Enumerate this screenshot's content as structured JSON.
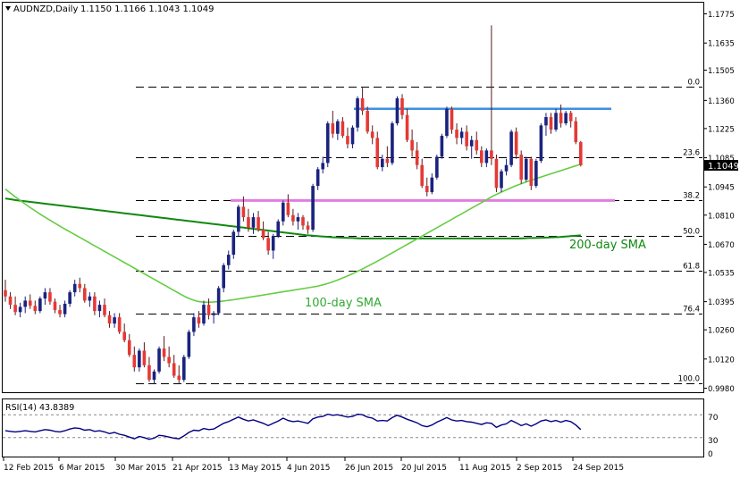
{
  "header": {
    "symbol_label": "AUDNZD,Daily",
    "ohlc_label": "1.1150 1.1166 1.1043 1.1049"
  },
  "rsi_panel": {
    "label": "RSI(14) 43.8389",
    "levels": [
      70,
      30
    ],
    "scale_ticks": [
      "70",
      "30",
      "0"
    ]
  },
  "annotations": {
    "sma200_label": "200-day SMA",
    "sma100_label": "100-day SMA",
    "current_price_tag": "1.1049"
  },
  "colors": {
    "bull_candle": "#1a237e",
    "bear_candle": "#e53935",
    "sma100": "#66cc44",
    "sma200": "#118811",
    "resistance_line": "#3d8fe0",
    "support_line": "#e07de0",
    "fib_lines": "#000000",
    "rsi_line": "#000080"
  },
  "chart_data": {
    "type": "candlestick",
    "y_axis_ticks": [
      1.1775,
      1.1635,
      1.1505,
      1.136,
      1.1225,
      1.1085,
      1.0945,
      1.081,
      1.067,
      1.0535,
      1.0395,
      1.026,
      1.012,
      0.998
    ],
    "ylim": [
      0.9965,
      1.182
    ],
    "x_axis_labels": [
      "12 Feb 2015",
      "6 Mar 2015",
      "30 Mar 2015",
      "21 Apr 2015",
      "13 May 2015",
      "4 Jun 2015",
      "26 Jun 2015",
      "20 Jul 2015",
      "11 Aug 2015",
      "2 Sep 2015",
      "24 Sep 2015"
    ],
    "fibonacci_levels": [
      {
        "label": "0.0",
        "price": 1.1425
      },
      {
        "label": "23.6",
        "price": 1.1087
      },
      {
        "label": "38.2",
        "price": 1.088
      },
      {
        "label": "50.0",
        "price": 1.0712
      },
      {
        "label": "61.8",
        "price": 1.0545
      },
      {
        "label": "76.4",
        "price": 1.0337
      },
      {
        "label": "100.0",
        "price": 1.0005
      }
    ],
    "resistance": {
      "price": 1.132
    },
    "support": {
      "price": 1.088
    },
    "current_price": 1.1049,
    "candles": [
      [
        1.045,
        1.05,
        1.0395,
        1.042
      ],
      [
        1.042,
        1.044,
        1.036,
        1.038
      ],
      [
        1.038,
        1.042,
        1.033,
        1.0345
      ],
      [
        1.0345,
        1.039,
        1.032,
        1.037
      ],
      [
        1.037,
        1.042,
        1.034,
        1.04
      ],
      [
        1.04,
        1.043,
        1.036,
        1.0375
      ],
      [
        1.0375,
        1.04,
        1.0335,
        1.035
      ],
      [
        1.035,
        1.042,
        1.034,
        1.041
      ],
      [
        1.041,
        1.046,
        1.038,
        1.044
      ],
      [
        1.044,
        1.046,
        1.038,
        1.0395
      ],
      [
        1.0395,
        1.041,
        1.034,
        1.0355
      ],
      [
        1.0355,
        1.038,
        1.032,
        1.0335
      ],
      [
        1.0335,
        1.04,
        1.032,
        1.0385
      ],
      [
        1.0385,
        1.045,
        1.037,
        1.044
      ],
      [
        1.044,
        1.05,
        1.042,
        1.048
      ],
      [
        1.048,
        1.051,
        1.044,
        1.046
      ],
      [
        1.046,
        1.048,
        1.039,
        1.04
      ],
      [
        1.04,
        1.044,
        1.037,
        1.042
      ],
      [
        1.042,
        1.044,
        1.033,
        1.035
      ],
      [
        1.035,
        1.04,
        1.032,
        1.038
      ],
      [
        1.038,
        1.041,
        1.032,
        1.033
      ],
      [
        1.033,
        1.035,
        1.027,
        1.029
      ],
      [
        1.029,
        1.034,
        1.027,
        1.032
      ],
      [
        1.032,
        1.034,
        1.024,
        1.025
      ],
      [
        1.025,
        1.029,
        1.02,
        1.021
      ],
      [
        1.021,
        1.024,
        1.013,
        1.014
      ],
      [
        1.014,
        1.018,
        1.006,
        1.008
      ],
      [
        1.008,
        1.017,
        1.006,
        1.016
      ],
      [
        1.016,
        1.02,
        1.008,
        1.009
      ],
      [
        1.009,
        1.013,
        1.001,
        1.002
      ],
      [
        1.002,
        1.007,
        1.0,
        1.006
      ],
      [
        1.006,
        1.018,
        1.005,
        1.017
      ],
      [
        1.017,
        1.023,
        1.011,
        1.013
      ],
      [
        1.013,
        1.018,
        1.008,
        1.01
      ],
      [
        1.01,
        1.014,
        1.003,
        1.004
      ],
      [
        1.004,
        1.009,
        1.0,
        1.002
      ],
      [
        1.002,
        1.014,
        1.001,
        1.013
      ],
      [
        1.013,
        1.026,
        1.012,
        1.025
      ],
      [
        1.025,
        1.034,
        1.023,
        1.032
      ],
      [
        1.032,
        1.035,
        1.027,
        1.029
      ],
      [
        1.029,
        1.04,
        1.028,
        1.038
      ],
      [
        1.038,
        1.041,
        1.031,
        1.033
      ],
      [
        1.033,
        1.035,
        1.029,
        1.034
      ],
      [
        1.034,
        1.047,
        1.033,
        1.046
      ],
      [
        1.046,
        1.058,
        1.044,
        1.057
      ],
      [
        1.057,
        1.064,
        1.055,
        1.062
      ],
      [
        1.062,
        1.074,
        1.06,
        1.073
      ],
      [
        1.073,
        1.086,
        1.071,
        1.085
      ],
      [
        1.085,
        1.09,
        1.078,
        1.08
      ],
      [
        1.08,
        1.084,
        1.073,
        1.075
      ],
      [
        1.075,
        1.082,
        1.072,
        1.08
      ],
      [
        1.08,
        1.083,
        1.073,
        1.074
      ],
      [
        1.074,
        1.078,
        1.069,
        1.07
      ],
      [
        1.07,
        1.073,
        1.062,
        1.064
      ],
      [
        1.064,
        1.072,
        1.06,
        1.071
      ],
      [
        1.071,
        1.079,
        1.07,
        1.078
      ],
      [
        1.078,
        1.088,
        1.076,
        1.087
      ],
      [
        1.087,
        1.091,
        1.08,
        1.081
      ],
      [
        1.081,
        1.084,
        1.076,
        1.078
      ],
      [
        1.078,
        1.082,
        1.074,
        1.08
      ],
      [
        1.08,
        1.081,
        1.074,
        1.076
      ],
      [
        1.076,
        1.078,
        1.072,
        1.074
      ],
      [
        1.074,
        1.096,
        1.073,
        1.095
      ],
      [
        1.095,
        1.104,
        1.093,
        1.103
      ],
      [
        1.103,
        1.109,
        1.101,
        1.106
      ],
      [
        1.106,
        1.126,
        1.104,
        1.125
      ],
      [
        1.125,
        1.131,
        1.118,
        1.12
      ],
      [
        1.12,
        1.127,
        1.117,
        1.126
      ],
      [
        1.126,
        1.128,
        1.118,
        1.119
      ],
      [
        1.119,
        1.123,
        1.113,
        1.115
      ],
      [
        1.115,
        1.124,
        1.113,
        1.123
      ],
      [
        1.123,
        1.138,
        1.121,
        1.137
      ],
      [
        1.137,
        1.142,
        1.129,
        1.131
      ],
      [
        1.131,
        1.133,
        1.12,
        1.121
      ],
      [
        1.121,
        1.124,
        1.115,
        1.118
      ],
      [
        1.118,
        1.121,
        1.103,
        1.104
      ],
      [
        1.104,
        1.11,
        1.102,
        1.108
      ],
      [
        1.108,
        1.114,
        1.104,
        1.106
      ],
      [
        1.106,
        1.126,
        1.105,
        1.125
      ],
      [
        1.125,
        1.138,
        1.124,
        1.137
      ],
      [
        1.137,
        1.139,
        1.127,
        1.129
      ],
      [
        1.129,
        1.132,
        1.116,
        1.117
      ],
      [
        1.117,
        1.122,
        1.109,
        1.112
      ],
      [
        1.112,
        1.116,
        1.103,
        1.105
      ],
      [
        1.105,
        1.108,
        1.094,
        1.095
      ],
      [
        1.095,
        1.099,
        1.09,
        1.092
      ],
      [
        1.092,
        1.101,
        1.091,
        1.099
      ],
      [
        1.099,
        1.11,
        1.098,
        1.109
      ],
      [
        1.109,
        1.12,
        1.108,
        1.119
      ],
      [
        1.119,
        1.133,
        1.118,
        1.132
      ],
      [
        1.132,
        1.133,
        1.12,
        1.122
      ],
      [
        1.122,
        1.125,
        1.115,
        1.118
      ],
      [
        1.118,
        1.123,
        1.115,
        1.121
      ],
      [
        1.121,
        1.124,
        1.112,
        1.114
      ],
      [
        1.114,
        1.119,
        1.108,
        1.117
      ],
      [
        1.117,
        1.121,
        1.11,
        1.112
      ],
      [
        1.112,
        1.114,
        1.104,
        1.106
      ],
      [
        1.106,
        1.113,
        1.104,
        1.112
      ],
      [
        1.112,
        1.172,
        1.105,
        1.108
      ],
      [
        1.108,
        1.11,
        1.092,
        1.094
      ],
      [
        1.094,
        1.103,
        1.092,
        1.102
      ],
      [
        1.102,
        1.108,
        1.1,
        1.105
      ],
      [
        1.105,
        1.122,
        1.104,
        1.121
      ],
      [
        1.121,
        1.123,
        1.108,
        1.11
      ],
      [
        1.11,
        1.112,
        1.096,
        1.098
      ],
      [
        1.098,
        1.109,
        1.097,
        1.108
      ],
      [
        1.108,
        1.109,
        1.093,
        1.095
      ],
      [
        1.095,
        1.108,
        1.094,
        1.107
      ],
      [
        1.107,
        1.125,
        1.106,
        1.124
      ],
      [
        1.124,
        1.13,
        1.119,
        1.128
      ],
      [
        1.128,
        1.13,
        1.12,
        1.122
      ],
      [
        1.122,
        1.132,
        1.121,
        1.13
      ],
      [
        1.13,
        1.134,
        1.123,
        1.125
      ],
      [
        1.125,
        1.131,
        1.124,
        1.13
      ],
      [
        1.13,
        1.131,
        1.123,
        1.126
      ],
      [
        1.126,
        1.128,
        1.115,
        1.116
      ],
      [
        1.116,
        1.1166,
        1.1043,
        1.1049
      ]
    ],
    "sma100": [
      1.0935,
      1.0915,
      1.0896,
      1.0878,
      1.086,
      1.0843,
      1.0826,
      1.081,
      1.0795,
      1.078,
      1.0765,
      1.075,
      1.0736,
      1.0722,
      1.0708,
      1.0694,
      1.068,
      1.0666,
      1.0652,
      1.0638,
      1.0624,
      1.061,
      1.0596,
      1.0582,
      1.0568,
      1.0554,
      1.054,
      1.0526,
      1.0512,
      1.0498,
      1.0484,
      1.047,
      1.0456,
      1.0442,
      1.0428,
      1.0415,
      1.0405,
      1.0397,
      1.0393,
      1.0392,
      1.0393,
      1.0395,
      1.0398,
      1.0401,
      1.0404,
      1.0408,
      1.0412,
      1.0416,
      1.042,
      1.0424,
      1.0428,
      1.0432,
      1.0436,
      1.044,
      1.0444,
      1.0448,
      1.0452,
      1.0456,
      1.046,
      1.0464,
      1.0468,
      1.0474,
      1.0481,
      1.0489,
      1.0498,
      1.0508,
      1.0518,
      1.0529,
      1.0541,
      1.0553,
      1.0566,
      1.0579,
      1.0592,
      1.0606,
      1.062,
      1.0634,
      1.0648,
      1.0662,
      1.0676,
      1.069,
      1.0704,
      1.0718,
      1.0732,
      1.0746,
      1.076,
      1.0774,
      1.0788,
      1.0802,
      1.0816,
      1.083,
      1.0844,
      1.0858,
      1.0872,
      1.0886,
      1.09,
      1.0912,
      1.0924,
      1.0935,
      1.0946,
      1.0956,
      1.0965,
      1.0974,
      1.0982,
      1.099,
      1.0998,
      1.1006,
      1.1014,
      1.1022,
      1.103,
      1.1038,
      1.1046,
      1.1054
    ],
    "sma200": [
      1.089,
      1.0886,
      1.0882,
      1.0879,
      1.0876,
      1.0873,
      1.087,
      1.0867,
      1.0864,
      1.0861,
      1.0858,
      1.0855,
      1.0852,
      1.0849,
      1.0846,
      1.0843,
      1.084,
      1.0837,
      1.0834,
      1.0831,
      1.0828,
      1.0825,
      1.0822,
      1.0819,
      1.0816,
      1.0813,
      1.081,
      1.0807,
      1.0804,
      1.0801,
      1.0798,
      1.0795,
      1.0792,
      1.0789,
      1.0786,
      1.0783,
      1.078,
      1.0777,
      1.0774,
      1.0771,
      1.0768,
      1.0765,
      1.0762,
      1.0759,
      1.0756,
      1.0753,
      1.075,
      1.0747,
      1.0744,
      1.0741,
      1.0738,
      1.0735,
      1.0732,
      1.0729,
      1.0726,
      1.0723,
      1.072,
      1.0717,
      1.0714,
      1.0712,
      1.071,
      1.0708,
      1.0706,
      1.0704,
      1.0703,
      1.0702,
      1.0701,
      1.07,
      1.0699,
      1.0698,
      1.0698,
      1.0698,
      1.0698,
      1.0698,
      1.0698,
      1.0698,
      1.0698,
      1.0698,
      1.0698,
      1.0698,
      1.0698,
      1.0698,
      1.0698,
      1.0698,
      1.0698,
      1.0698,
      1.0698,
      1.0698,
      1.0698,
      1.0698,
      1.0698,
      1.0698,
      1.0698,
      1.0698,
      1.0698,
      1.0698,
      1.0698,
      1.0698,
      1.0698,
      1.0698,
      1.0699,
      1.07,
      1.07,
      1.0701,
      1.0702,
      1.0703,
      1.0704,
      1.0705,
      1.0707,
      1.0709,
      1.0711,
      1.0713
    ],
    "rsi": [
      42,
      41,
      40,
      41,
      42,
      41,
      40,
      42,
      44,
      43,
      41,
      40,
      42,
      45,
      47,
      46,
      43,
      44,
      41,
      42,
      40,
      37,
      39,
      36,
      34,
      31,
      28,
      32,
      30,
      27,
      29,
      34,
      33,
      31,
      29,
      28,
      33,
      39,
      43,
      42,
      46,
      44,
      45,
      50,
      55,
      58,
      62,
      66,
      62,
      59,
      61,
      58,
      55,
      51,
      55,
      59,
      64,
      60,
      58,
      59,
      57,
      55,
      63,
      66,
      67,
      71,
      69,
      70,
      68,
      66,
      67,
      71,
      70,
      66,
      64,
      59,
      60,
      59,
      65,
      69,
      66,
      62,
      59,
      56,
      51,
      49,
      52,
      57,
      61,
      65,
      61,
      59,
      60,
      58,
      57,
      55,
      53,
      56,
      55,
      48,
      52,
      54,
      60,
      56,
      51,
      54,
      50,
      54,
      59,
      61,
      58,
      60,
      57,
      60,
      58,
      52,
      44
    ]
  }
}
